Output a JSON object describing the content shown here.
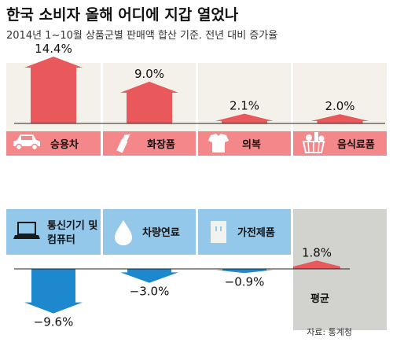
{
  "header": {
    "title": "한국 소비자 올해 어디에 지갑 열었나",
    "subtitle": "2014년 1~10월 상품군별 판매액 합산 기준. 전년 대비 증가율"
  },
  "source": "자료: 통계청",
  "colors": {
    "positive": "#e9585a",
    "negative": "#1e88cf",
    "panel_top": "#f3f1ea",
    "label_band_top": "#f4878a",
    "label_band_bottom": "#94c8eb",
    "average_panel": "#d2d2cf",
    "axis": "#222222"
  },
  "chart_data": {
    "type": "bar",
    "title": "한국 소비자 올해 어디에 지갑 열었나",
    "subtitle": "2014년 1~10월 상품군별 판매액 합산 기준. 전년 대비 증가율",
    "unit": "%",
    "rows": [
      {
        "items": [
          {
            "category": "승용차",
            "value": 14.4,
            "value_label": "14.4%",
            "icon": "car-icon"
          },
          {
            "category": "화장품",
            "value": 9.0,
            "value_label": "9.0%",
            "icon": "cosmetics-icon"
          },
          {
            "category": "의복",
            "value": 2.1,
            "value_label": "2.1%",
            "icon": "clothing-icon"
          },
          {
            "category": "음식료품",
            "value": 2.0,
            "value_label": "2.0%",
            "icon": "grocery-basket-icon"
          }
        ]
      },
      {
        "items": [
          {
            "category": "통신기기 및 컴퓨터",
            "label_lines": [
              "통신기기 및",
              "컴퓨터"
            ],
            "value": -9.6,
            "value_label": "−9.6%",
            "icon": "laptop-icon"
          },
          {
            "category": "차량연료",
            "value": -3.0,
            "value_label": "−3.0%",
            "icon": "fuel-drop-icon"
          },
          {
            "category": "가전제품",
            "value": -0.9,
            "value_label": "−0.9%",
            "icon": "appliance-icon"
          },
          {
            "category": "평균",
            "value": 1.8,
            "value_label": "1.8%",
            "icon": "",
            "average": true
          }
        ]
      }
    ]
  }
}
